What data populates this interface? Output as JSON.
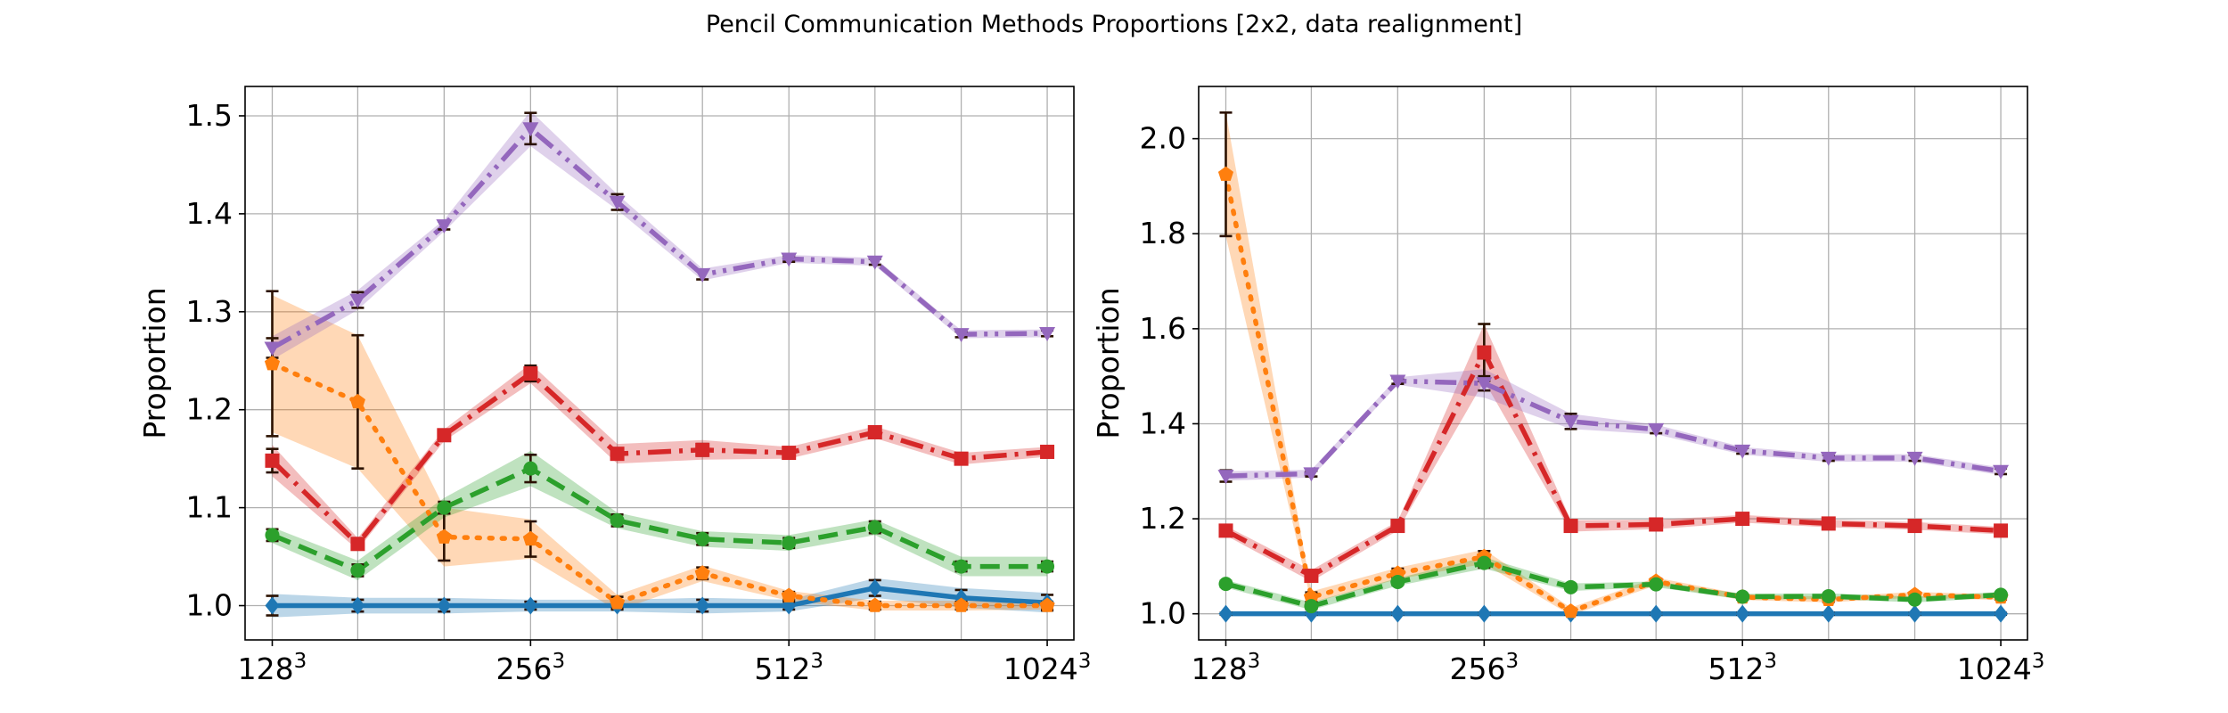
{
  "figure_title": "Pencil Communication Methods Proportions [2x2, data realignment]",
  "chart_data": [
    {
      "type": "line",
      "title": "",
      "xlabel": "",
      "ylabel": "Proportion",
      "x_scale": "log2",
      "x": [
        128,
        161,
        203,
        256,
        323,
        406,
        512,
        645,
        813,
        1024
      ],
      "x_ticks": [
        128,
        256,
        512,
        1024
      ],
      "x_tick_labels": [
        "128",
        "256",
        "512",
        "1024"
      ],
      "x_tick_superscript": "3",
      "xlim": [
        119,
        1100
      ],
      "ylim": [
        0.965,
        1.53
      ],
      "y_ticks": [
        1.0,
        1.1,
        1.2,
        1.3,
        1.4,
        1.5
      ],
      "y_tick_labels": [
        "1.0",
        "1.1",
        "1.2",
        "1.3",
        "1.4",
        "1.5"
      ],
      "grid": true,
      "series": [
        {
          "color": "#1f77b4",
          "linestyle": "solid",
          "marker": "diamond",
          "values": [
            1.0,
            1.0,
            1.0,
            1.0,
            1.0,
            1.0,
            1.0,
            1.018,
            1.008,
            1.003
          ],
          "band": [
            0.012,
            0.008,
            0.008,
            0.006,
            0.006,
            0.008,
            0.006,
            0.01,
            0.01,
            0.01
          ],
          "err": [
            0.01,
            0.006,
            0.006,
            0.004,
            0.004,
            0.006,
            0.004,
            0.008,
            0.008,
            0.008
          ]
        },
        {
          "color": "#ff7f0e",
          "linestyle": "dotted",
          "marker": "pentagon",
          "values": [
            1.247,
            1.208,
            1.07,
            1.068,
            1.003,
            1.033,
            1.01,
            1.0,
            1.0,
            1.0
          ],
          "band": [
            0.07,
            0.068,
            0.03,
            0.02,
            0.008,
            0.008,
            0.005,
            0.005,
            0.005,
            0.004
          ],
          "err": [
            0.074,
            0.068,
            0.024,
            0.018,
            0.006,
            0.006,
            0.004,
            0.004,
            0.004,
            0.004
          ]
        },
        {
          "color": "#2ca02c",
          "linestyle": "dashed",
          "marker": "circle",
          "values": [
            1.072,
            1.036,
            1.1,
            1.14,
            1.087,
            1.068,
            1.064,
            1.08,
            1.04,
            1.04
          ],
          "band": [
            0.008,
            0.01,
            0.01,
            0.018,
            0.008,
            0.008,
            0.008,
            0.008,
            0.01,
            0.01
          ],
          "err": [
            0.006,
            0.006,
            0.006,
            0.014,
            0.006,
            0.006,
            0.005,
            0.006,
            0.005,
            0.005
          ]
        },
        {
          "color": "#d62728",
          "linestyle": "dashdot",
          "marker": "square",
          "values": [
            1.148,
            1.063,
            1.174,
            1.237,
            1.155,
            1.159,
            1.156,
            1.177,
            1.15,
            1.157
          ],
          "band": [
            0.016,
            0.006,
            0.006,
            0.01,
            0.01,
            0.01,
            0.006,
            0.006,
            0.006,
            0.005
          ],
          "err": [
            0.012,
            0.004,
            0.004,
            0.008,
            0.004,
            0.006,
            0.004,
            0.004,
            0.004,
            0.004
          ]
        },
        {
          "color": "#9467bd",
          "linestyle": "dashdotdot",
          "marker": "triangle-down",
          "values": [
            1.263,
            1.312,
            1.388,
            1.487,
            1.412,
            1.338,
            1.354,
            1.351,
            1.277,
            1.278
          ],
          "band": [
            0.012,
            0.01,
            0.006,
            0.018,
            0.008,
            0.006,
            0.004,
            0.004,
            0.004,
            0.004
          ],
          "err": [
            0.01,
            0.008,
            0.004,
            0.016,
            0.008,
            0.005,
            0.003,
            0.003,
            0.003,
            0.003
          ]
        }
      ]
    },
    {
      "type": "line",
      "title": "",
      "xlabel": "",
      "ylabel": "Proportion",
      "x_scale": "log2",
      "x": [
        128,
        161,
        203,
        256,
        323,
        406,
        512,
        645,
        813,
        1024
      ],
      "x_ticks": [
        128,
        256,
        512,
        1024
      ],
      "x_tick_labels": [
        "128",
        "256",
        "512",
        "1024"
      ],
      "x_tick_superscript": "3",
      "xlim": [
        119,
        1100
      ],
      "ylim": [
        0.945,
        2.11
      ],
      "y_ticks": [
        1.0,
        1.2,
        1.4,
        1.6,
        1.8,
        2.0
      ],
      "y_tick_labels": [
        "1.0",
        "1.2",
        "1.4",
        "1.6",
        "1.8",
        "2.0"
      ],
      "grid": true,
      "series": [
        {
          "color": "#1f77b4",
          "linestyle": "solid",
          "marker": "diamond",
          "values": [
            1.0,
            1.0,
            1.0,
            1.0,
            1.0,
            1.0,
            1.0,
            1.0,
            1.0,
            1.0
          ],
          "band": [
            0.003,
            0.003,
            0.003,
            0.003,
            0.003,
            0.003,
            0.003,
            0.003,
            0.003,
            0.003
          ],
          "err": [
            0.002,
            0.002,
            0.002,
            0.002,
            0.002,
            0.002,
            0.002,
            0.002,
            0.002,
            0.002
          ]
        },
        {
          "color": "#ff7f0e",
          "linestyle": "dotted",
          "marker": "pentagon",
          "values": [
            1.925,
            1.035,
            1.085,
            1.12,
            1.005,
            1.068,
            1.035,
            1.03,
            1.04,
            1.035
          ],
          "band": [
            0.13,
            0.012,
            0.012,
            0.015,
            0.008,
            0.008,
            0.006,
            0.006,
            0.006,
            0.006
          ],
          "err": [
            0.13,
            0.01,
            0.01,
            0.012,
            0.006,
            0.006,
            0.005,
            0.005,
            0.005,
            0.005
          ]
        },
        {
          "color": "#2ca02c",
          "linestyle": "dashed",
          "marker": "circle",
          "values": [
            1.063,
            1.016,
            1.067,
            1.107,
            1.056,
            1.062,
            1.036,
            1.037,
            1.03,
            1.04
          ],
          "band": [
            0.008,
            0.008,
            0.008,
            0.012,
            0.008,
            0.006,
            0.006,
            0.006,
            0.006,
            0.006
          ],
          "err": [
            0.006,
            0.006,
            0.006,
            0.01,
            0.006,
            0.005,
            0.004,
            0.004,
            0.004,
            0.004
          ]
        },
        {
          "color": "#d62728",
          "linestyle": "dashdot",
          "marker": "square",
          "values": [
            1.175,
            1.08,
            1.185,
            1.55,
            1.185,
            1.188,
            1.2,
            1.19,
            1.185,
            1.175
          ],
          "band": [
            0.01,
            0.012,
            0.01,
            0.06,
            0.012,
            0.01,
            0.008,
            0.008,
            0.008,
            0.008
          ],
          "err": [
            0.008,
            0.01,
            0.008,
            0.06,
            0.01,
            0.008,
            0.006,
            0.006,
            0.006,
            0.006
          ]
        },
        {
          "color": "#9467bd",
          "linestyle": "dashdotdot",
          "marker": "triangle-down",
          "values": [
            1.29,
            1.295,
            1.49,
            1.485,
            1.405,
            1.388,
            1.343,
            1.328,
            1.328,
            1.3
          ],
          "band": [
            0.01,
            0.008,
            0.008,
            0.03,
            0.016,
            0.01,
            0.008,
            0.008,
            0.008,
            0.008
          ],
          "err": [
            0.012,
            0.006,
            0.006,
            0.015,
            0.016,
            0.008,
            0.006,
            0.006,
            0.006,
            0.006
          ]
        }
      ]
    }
  ]
}
